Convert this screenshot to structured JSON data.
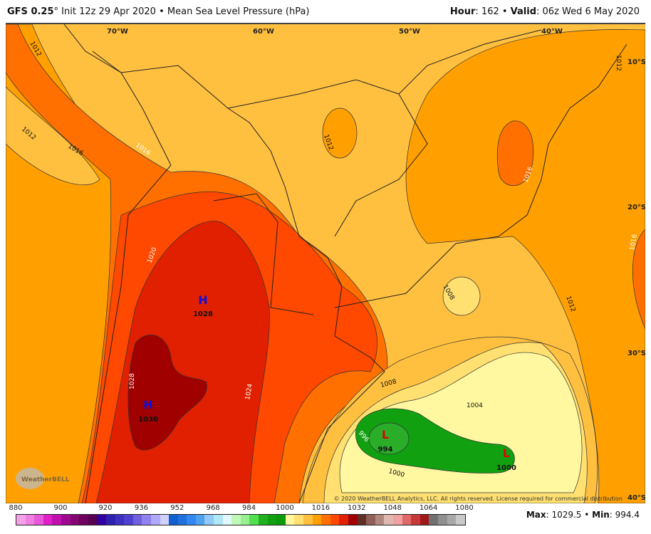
{
  "header": {
    "model": "GFS 0.25",
    "degree": "°",
    "init": " Init 12z 29 Apr 2020",
    "sep": " • ",
    "field": "Mean Sea Level Pressure (hPa)",
    "hour_label": "Hour",
    "hour_value": ": 162",
    "valid_label": "Valid",
    "valid_value": ": 06z Wed 6 May 2020"
  },
  "map": {
    "lon_labels": [
      "70°W",
      "60°W",
      "50°W",
      "40°W"
    ],
    "lat_labels": [
      "10°S",
      "20°S",
      "30°S",
      "40°S"
    ],
    "contour_labels": [
      "1012",
      "1012",
      "1016",
      "1016",
      "1012",
      "1016",
      "1012",
      "1016",
      "1020",
      "1028",
      "1024",
      "1008",
      "1012",
      "1008",
      "1004",
      "996",
      "1000"
    ],
    "centers": [
      {
        "letter": "H",
        "value": "1028",
        "color": "#1010e0"
      },
      {
        "letter": "H",
        "value": "1030",
        "color": "#1010e0"
      },
      {
        "letter": "L",
        "value": "994",
        "color": "#e00000"
      },
      {
        "letter": "L",
        "value": "1000",
        "color": "#e00000"
      }
    ],
    "copyright": "© 2020 WeatherBELL Analytics, LLC. All rights reserved. License required for commercial distribution",
    "logo_text": "WeatherBELL"
  },
  "colorbar": {
    "ticks": [
      "880",
      "900",
      "920",
      "936",
      "952",
      "968",
      "984",
      "1000",
      "1016",
      "1032",
      "1048",
      "1064",
      "1080"
    ],
    "colors": [
      "#f5a0e8",
      "#f080e0",
      "#e858d8",
      "#e020c8",
      "#c010b0",
      "#a00890",
      "#800870",
      "#700060",
      "#580050",
      "#3000a0",
      "#3020b0",
      "#4030c0",
      "#5040d0",
      "#7060e0",
      "#9080f0",
      "#b0a8f8",
      "#d0d0ff",
      "#1060d0",
      "#2070e0",
      "#3088f0",
      "#50a0f0",
      "#90c8f8",
      "#b0e8f8",
      "#e0f8ff",
      "#c0f8b8",
      "#98f090",
      "#50e050",
      "#20b020",
      "#10a010",
      "#0a9a0a",
      "#fff8a0",
      "#ffe070",
      "#ffc040",
      "#ffa000",
      "#ff7000",
      "#ff4800",
      "#e02000",
      "#a00000",
      "#603028",
      "#906058",
      "#b08880",
      "#e0b8b0",
      "#f0a0a0",
      "#e06868",
      "#c83838",
      "#a01818",
      "#707070",
      "#909090",
      "#a8a8a8",
      "#c8c8c8"
    ]
  },
  "stats": {
    "max_label": "Max",
    "max_value": ": 1029.5",
    "min_label": "Min",
    "min_value": ": 994.4",
    "sep": " • "
  }
}
